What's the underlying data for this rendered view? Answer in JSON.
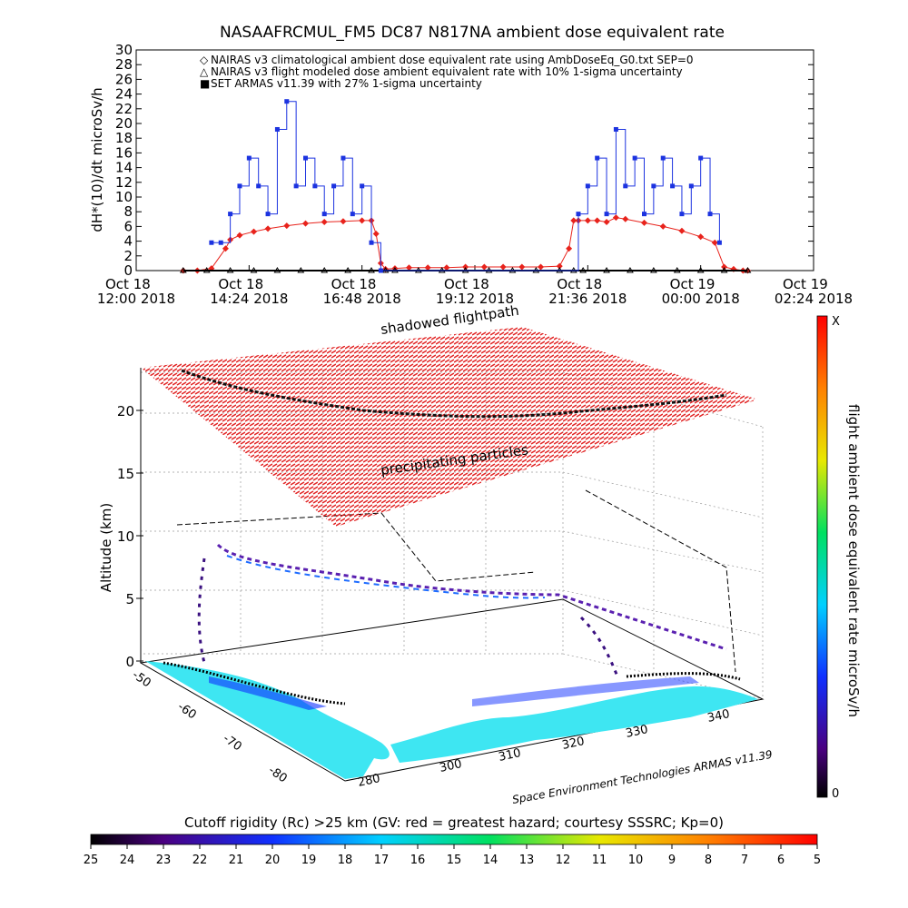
{
  "figure": {
    "top_title": "NASAAFRCMUL_FM5 DC87 N817NA ambient dose equivalent rate",
    "watermark": "Space Environment Technologies ARMAS v11.39",
    "cutoff_bar_title": "Cutoff rigidity (Rc) >25 km (GV: red = greatest hazard; courtesy SSSRC; Kp=0)"
  },
  "chart_data": [
    {
      "type": "line",
      "title": "NASAAFRCMUL_FM5 DC87 N817NA ambient dose equivalent rate",
      "ylabel": "dH*(10)/dt microSv/h",
      "ylim": [
        0,
        30
      ],
      "yticks": [
        0,
        2,
        4,
        6,
        8,
        10,
        12,
        14,
        16,
        18,
        20,
        22,
        24,
        26,
        28,
        30
      ],
      "xlim": [
        "2018-10-18 12:00",
        "2018-10-19 02:24"
      ],
      "xticks": [
        {
          "line1": "Oct 18",
          "line2": "12:00 2018"
        },
        {
          "line1": "Oct 18",
          "line2": "14:24 2018"
        },
        {
          "line1": "Oct 18",
          "line2": "16:48 2018"
        },
        {
          "line1": "Oct 18",
          "line2": "19:12 2018"
        },
        {
          "line1": "Oct 18",
          "line2": "21:36 2018"
        },
        {
          "line1": "Oct 19",
          "line2": "00:00 2018"
        },
        {
          "line1": "Oct 19",
          "line2": "02:24 2018"
        }
      ],
      "legend": [
        {
          "marker": "◇",
          "color": "#e8231c",
          "text": "NAIRAS v3 climatological ambient dose equivalent rate using AmbDoseEq_G0.txt SEP=0"
        },
        {
          "marker": "△",
          "color": "#000000",
          "text": "NAIRAS v3 flight modeled dose ambient equivalent rate with 10% 1-sigma uncertainty"
        },
        {
          "marker": "■",
          "color": "#1c33e0",
          "text": "SET ARMAS v11.39 with 27% 1-sigma uncertainty"
        }
      ],
      "series": [
        {
          "name": "NAIRAS v3 climatological ambient dose equivalent rate using AmbDoseEq_G0.txt SEP=0",
          "color": "#e8231c",
          "x_hours": [
            13.0,
            13.3,
            13.6,
            13.9,
            14.0,
            14.2,
            14.5,
            14.8,
            15.2,
            15.6,
            16.0,
            16.4,
            16.8,
            17.0,
            17.1,
            17.2,
            17.3,
            17.5,
            17.8,
            18.2,
            18.6,
            19.0,
            19.4,
            19.8,
            20.2,
            20.6,
            21.0,
            21.2,
            21.3,
            21.4,
            21.6,
            21.8,
            22.0,
            22.2,
            22.4,
            22.8,
            23.2,
            23.6,
            24.0,
            24.3,
            24.5,
            24.7,
            24.9,
            25.0
          ],
          "values": [
            0,
            0,
            0.3,
            3,
            4.2,
            4.8,
            5.3,
            5.7,
            6.1,
            6.4,
            6.6,
            6.7,
            6.8,
            6.8,
            5,
            1,
            0.2,
            0.3,
            0.4,
            0.4,
            0.4,
            0.5,
            0.5,
            0.5,
            0.5,
            0.5,
            0.6,
            3,
            6.8,
            6.8,
            6.8,
            6.8,
            6.6,
            7.2,
            7,
            6.5,
            6,
            5.4,
            4.6,
            3.8,
            0.5,
            0.2,
            0,
            0
          ]
        },
        {
          "name": "NAIRAS v3 flight modeled dose ambient equivalent rate with 10% 1-sigma uncertainty",
          "color": "#000000",
          "x_hours": [
            13.0,
            13.5,
            14.0,
            14.5,
            15.0,
            15.5,
            16.0,
            16.5,
            17.0,
            17.3,
            17.5,
            18.0,
            18.5,
            19.0,
            19.5,
            20.0,
            20.5,
            21.0,
            21.3,
            21.5,
            22.0,
            22.5,
            23.0,
            23.5,
            24.0,
            24.5,
            25.0
          ],
          "values": [
            0,
            0,
            0,
            0,
            0,
            0,
            0,
            0,
            0,
            0,
            0,
            0,
            0,
            0,
            0,
            0,
            0,
            0,
            0,
            0,
            0,
            0,
            0,
            0,
            0,
            0,
            0
          ]
        },
        {
          "name": "SET ARMAS v11.39 with 27% 1-sigma uncertainty",
          "color": "#1c33e0",
          "x_hours": [
            13.6,
            13.8,
            14.0,
            14.2,
            14.4,
            14.6,
            14.8,
            15.0,
            15.2,
            15.4,
            15.6,
            15.8,
            16.0,
            16.2,
            16.4,
            16.6,
            16.8,
            17.0,
            17.2,
            21.4,
            21.6,
            21.8,
            22.0,
            22.2,
            22.4,
            22.6,
            22.8,
            23.0,
            23.2,
            23.4,
            23.6,
            23.8,
            24.0,
            24.2,
            24.4
          ],
          "values": [
            3.8,
            3.8,
            7.7,
            11.5,
            15.3,
            11.5,
            7.7,
            19.2,
            23,
            11.5,
            15.3,
            11.5,
            7.7,
            11.5,
            15.3,
            7.7,
            11.5,
            3.8,
            0,
            7.7,
            11.5,
            15.3,
            7.7,
            19.2,
            11.5,
            15.3,
            7.7,
            11.5,
            15.3,
            11.5,
            7.7,
            11.5,
            15.3,
            7.7,
            3.8
          ]
        }
      ]
    },
    {
      "type": "scatter",
      "title": "",
      "zlabel": "Altitude (km)",
      "zticks": [
        0,
        5,
        10,
        15,
        20
      ],
      "xticks": [
        280,
        300,
        310,
        320,
        330,
        340
      ],
      "yticks": [
        -50,
        -60,
        -70,
        -80
      ],
      "annotations": [
        "shadowed flightpath",
        "precipitating particles"
      ],
      "colorbar": {
        "label": "flight ambient dose equivalent rate microSv/h",
        "top_label": "X",
        "bottom_label": "0"
      }
    },
    {
      "type": "heatmap",
      "title": "Cutoff rigidity (Rc) >25 km (GV: red = greatest hazard; courtesy SSSRC; Kp=0)",
      "colorbar_ticks": [
        25,
        24,
        23,
        22,
        21,
        20,
        19,
        18,
        17,
        16,
        15,
        14,
        13,
        12,
        11,
        10,
        9,
        8,
        7,
        6,
        5
      ]
    }
  ]
}
